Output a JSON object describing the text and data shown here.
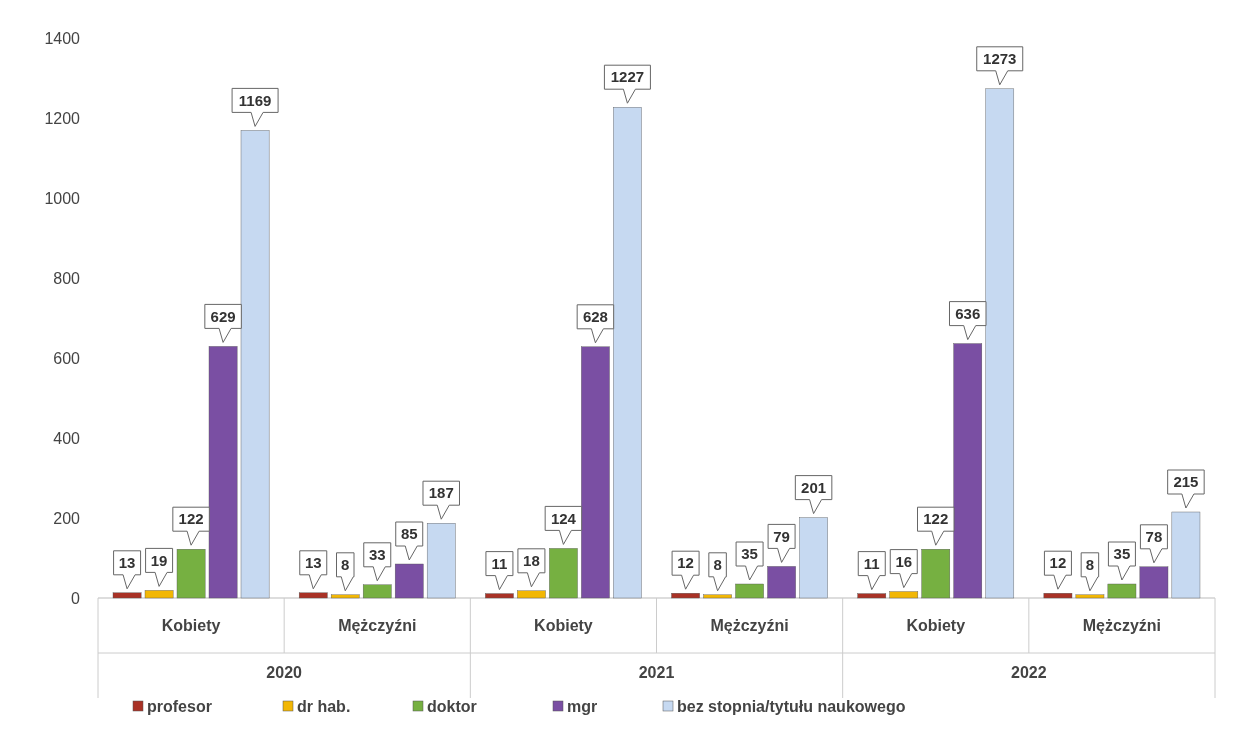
{
  "chart_data": {
    "type": "bar",
    "categories": [
      "Kobiety",
      "Mężczyźni",
      "Kobiety",
      "Mężczyźni",
      "Kobiety",
      "Mężczyźni"
    ],
    "annotations": [
      "2020",
      "2021",
      "2022"
    ],
    "series": [
      {
        "name": "profesor",
        "color": "#a93226",
        "values": [
          13,
          13,
          11,
          12,
          11,
          12
        ]
      },
      {
        "name": "dr hab.",
        "color": "#f2b705",
        "values": [
          19,
          8,
          18,
          8,
          16,
          8
        ]
      },
      {
        "name": "doktor",
        "color": "#76b041",
        "values": [
          122,
          33,
          124,
          35,
          122,
          35
        ]
      },
      {
        "name": "mgr",
        "color": "#7a4fa3",
        "values": [
          629,
          85,
          628,
          79,
          636,
          78
        ]
      },
      {
        "name": "bez stopnia/tytułu naukowego",
        "color": "#c6d9f1",
        "values": [
          1169,
          187,
          1227,
          201,
          1273,
          215
        ]
      }
    ],
    "ylim": [
      0,
      1400
    ],
    "yticks": [
      0,
      200,
      400,
      600,
      800,
      1000,
      1200,
      1400
    ],
    "data_labels": true,
    "legend": "bottom",
    "grid": false
  }
}
